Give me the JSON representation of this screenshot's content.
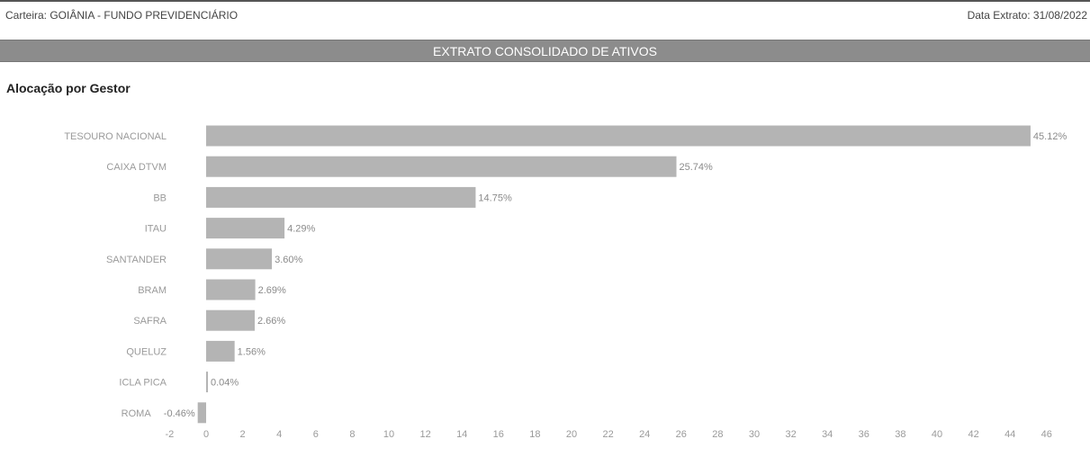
{
  "header": {
    "portfolio": "Carteira: GOIÂNIA - FUNDO PREVIDENCIÁRIO",
    "extract_date": "Data Extrato: 31/08/2022"
  },
  "banner": {
    "title": "EXTRATO CONSOLIDADO DE ATIVOS"
  },
  "section": {
    "title": "Alocação por Gestor"
  },
  "colors": {
    "bar": "#b4b4b4",
    "banner": "#8c8c8c",
    "axis_text": "#9a9a9a"
  },
  "chart_data": {
    "type": "bar",
    "orientation": "horizontal",
    "categories": [
      "TESOURO NACIONAL",
      "CAIXA DTVM",
      "BB",
      "ITAU",
      "SANTANDER",
      "BRAM",
      "SAFRA",
      "QUELUZ",
      "ICLA PICA",
      "ROMA"
    ],
    "values": [
      45.12,
      25.74,
      14.75,
      4.29,
      3.6,
      2.69,
      2.66,
      1.56,
      0.04,
      -0.46
    ],
    "labels": [
      "45.12%",
      "25.74%",
      "14.75%",
      "4.29%",
      "3.60%",
      "2.69%",
      "2.66%",
      "1.56%",
      "0.04%",
      "-0.46%"
    ],
    "xticks": [
      -2,
      0,
      2,
      4,
      6,
      8,
      10,
      12,
      14,
      16,
      18,
      20,
      22,
      24,
      26,
      28,
      30,
      32,
      34,
      36,
      38,
      40,
      42,
      44,
      46
    ],
    "xlim": [
      -2,
      46
    ],
    "grid": false,
    "title": "",
    "xlabel": "",
    "ylabel": ""
  }
}
